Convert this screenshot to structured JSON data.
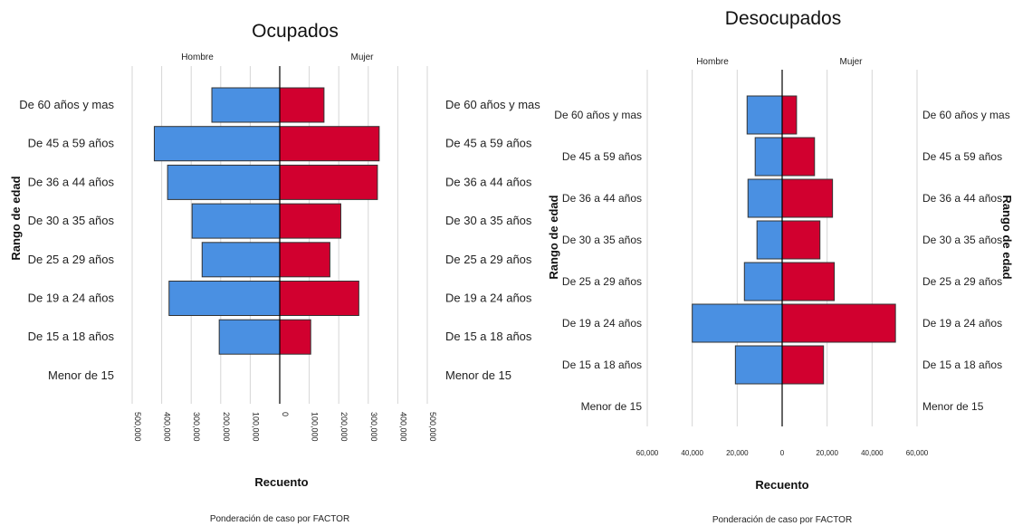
{
  "chart_data": [
    {
      "type": "bar",
      "title": "Ocupados",
      "left_label": "Hombre",
      "right_label": "Mujer",
      "categories": [
        "De 60 años y mas",
        "De 45 a 59 años",
        "De 36 a 44 años",
        "De 30 a 35 años",
        "De 25 a 29 años",
        "De 19 a 24 años",
        "De 15 a 18 años",
        "Menor de 15"
      ],
      "series": [
        {
          "name": "Hombre",
          "values": [
            230000,
            425000,
            380000,
            297000,
            263000,
            375000,
            205000,
            0
          ],
          "color": "#4a90e2"
        },
        {
          "name": "Mujer",
          "values": [
            150000,
            337000,
            331000,
            207000,
            170000,
            268000,
            105000,
            0
          ],
          "color": "#d1002f"
        }
      ],
      "xticks": [
        "500,000",
        "400,000",
        "300,000",
        "200,000",
        "100,000",
        "0",
        "100,000",
        "200,000",
        "300,000",
        "400,000",
        "500,000"
      ],
      "xlim": [
        -500000,
        500000
      ],
      "xlabel": "Recuento",
      "ylabel": "Rango de edad",
      "note": "Ponderación de caso por FACTOR",
      "grid": true
    },
    {
      "type": "bar",
      "title": "Desocupados",
      "left_label": "Hombre",
      "right_label": "Mujer",
      "categories": [
        "De 60 años y mas",
        "De 45 a 59 años",
        "De 36 a 44 años",
        "De 30 a 35 años",
        "De 25 a 29 años",
        "De 19 a 24 años",
        "De 15 a 18 años",
        "Menor de 15"
      ],
      "series": [
        {
          "name": "Hombre",
          "values": [
            19500,
            15000,
            19000,
            14000,
            21000,
            50000,
            26000,
            0
          ],
          "color": "#4a90e2"
        },
        {
          "name": "Mujer",
          "values": [
            8000,
            18000,
            28000,
            21000,
            29000,
            63000,
            23000,
            0
          ],
          "color": "#d1002f"
        }
      ],
      "xticks": [
        "60,000",
        "40,000",
        "20,000",
        "0",
        "20,000",
        "40,000",
        "60,000"
      ],
      "xlim": [
        -75000,
        75000
      ],
      "xlabel": "Recuento",
      "ylabel": "Rango de edad",
      "note": "Ponderación de caso por FACTOR",
      "grid": true
    }
  ]
}
